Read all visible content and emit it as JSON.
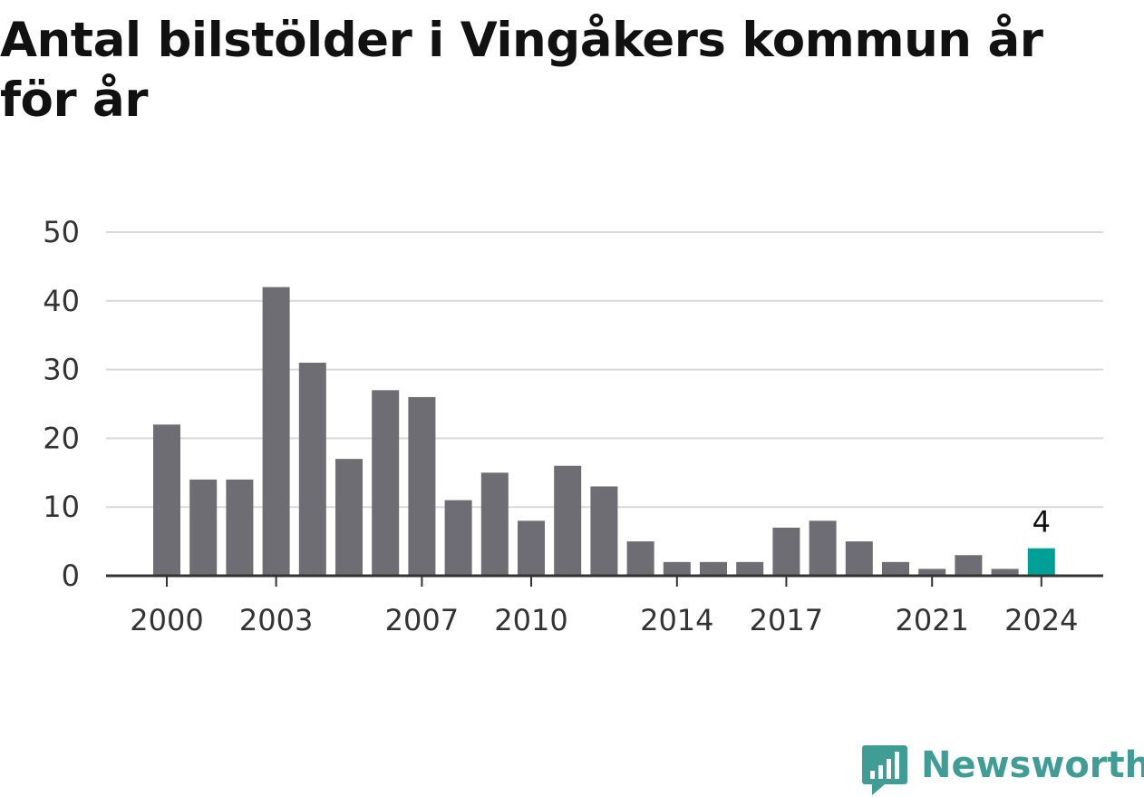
{
  "chart_data": {
    "type": "bar",
    "title": "Antal bilstölder i Vingåkers kommun år för år",
    "xlabel": "",
    "ylabel": "",
    "categories": [
      2000,
      2001,
      2002,
      2003,
      2004,
      2005,
      2006,
      2007,
      2008,
      2009,
      2010,
      2011,
      2012,
      2013,
      2014,
      2015,
      2016,
      2017,
      2018,
      2019,
      2020,
      2021,
      2022,
      2023,
      2024
    ],
    "values": [
      22,
      14,
      14,
      42,
      31,
      17,
      27,
      26,
      11,
      15,
      8,
      16,
      13,
      5,
      2,
      2,
      2,
      7,
      8,
      5,
      2,
      1,
      3,
      1,
      4
    ],
    "x_tick_labels": [
      "2000",
      "2003",
      "2007",
      "2010",
      "2014",
      "2017",
      "2021",
      "2024"
    ],
    "y_ticks": [
      0,
      10,
      20,
      30,
      40,
      50
    ],
    "ylim": [
      0,
      50
    ],
    "grid": true,
    "highlight": {
      "category": 2024,
      "label": "4"
    },
    "colors": {
      "bar": "#6e6d73",
      "highlight": "#00a096",
      "grid": "#d9d9d9",
      "axis": "#333333"
    }
  },
  "brand": {
    "name": "Newsworthy",
    "icon": "newsworthy-logo-icon",
    "color": "#3f9d96"
  }
}
